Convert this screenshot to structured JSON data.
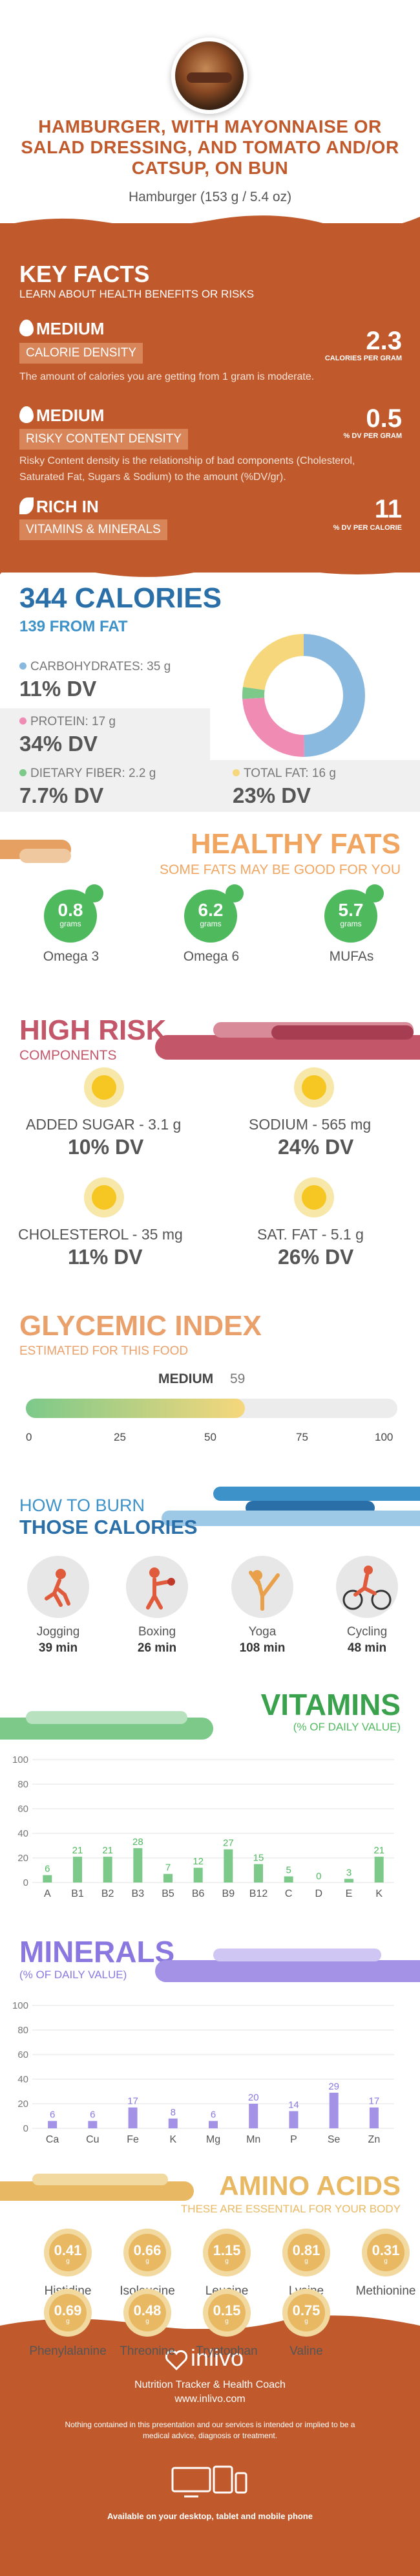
{
  "header": {
    "title": "HAMBURGER, WITH MAYONNAISE OR SALAD DRESSING, AND TOMATO AND/OR CATSUP, ON BUN",
    "subtitle": "Hamburger (153 g / 5.4 oz)"
  },
  "key_facts": {
    "title": "KEY FACTS",
    "subtitle": "LEARN ABOUT HEALTH BENEFITS OR RISKS",
    "calorie": {
      "level": "MEDIUM",
      "label": "CALORIE DENSITY",
      "value": "2.3",
      "unit": "CALORIES PER GRAM",
      "desc": "The amount of calories you are getting from 1 gram is moderate."
    },
    "risky": {
      "level": "MEDIUM",
      "label": "RISKY CONTENT DENSITY",
      "value": "0.5",
      "unit": "% DV PER GRAM",
      "desc": "Risky Content density is the relationship of bad components (Cholesterol, Saturated Fat, Sugars & Sodium) to the amount (%DV/gr)."
    },
    "rich": {
      "level": "RICH  IN",
      "label": "VITAMINS & MINERALS",
      "value": "11",
      "unit": "% DV PER CALORIE"
    }
  },
  "calories": {
    "title": "344 CALORIES",
    "from_fat": "139 FROM FAT",
    "carbs": {
      "label": "CARBOHYDRATES: 35 g",
      "dv": "11% DV",
      "color": "#8ab9df"
    },
    "protein": {
      "label": "PROTEIN: 17 g",
      "dv": "34% DV",
      "color": "#f08bb4"
    },
    "fiber": {
      "label": "DIETARY FIBER: 2.2 g",
      "dv": "7.7% DV",
      "color": "#7cc98a"
    },
    "fat": {
      "label": "TOTAL FAT: 16 g",
      "dv": "23% DV",
      "color": "#f6d77c"
    },
    "donut": [
      {
        "name": "carbs",
        "value": 35,
        "color": "#8ab9df"
      },
      {
        "name": "protein",
        "value": 17,
        "color": "#f08bb4"
      },
      {
        "name": "fiber",
        "value": 2.2,
        "color": "#7cc98a"
      },
      {
        "name": "fat",
        "value": 16,
        "color": "#f6d77c"
      }
    ]
  },
  "healthy_fats": {
    "title": "HEALTHY FATS",
    "subtitle": "SOME FATS MAY BE GOOD FOR YOU",
    "unit": "grams",
    "items": [
      {
        "value": "0.8",
        "label": "Omega 3"
      },
      {
        "value": "6.2",
        "label": "Omega 6"
      },
      {
        "value": "5.7",
        "label": "MUFAs"
      }
    ]
  },
  "high_risk": {
    "title": "HIGH RISK",
    "subtitle": "COMPONENTS",
    "items": [
      {
        "label": "ADDED SUGAR - 3.1 g",
        "dv": "10% DV"
      },
      {
        "label": "SODIUM - 565 mg",
        "dv": "24% DV"
      },
      {
        "label": "CHOLESTEROL - 35 mg",
        "dv": "11% DV"
      },
      {
        "label": "SAT. FAT - 5.1 g",
        "dv": "26% DV"
      }
    ]
  },
  "glycemic": {
    "title": "GLYCEMIC INDEX",
    "subtitle": "ESTIMATED FOR THIS FOOD",
    "level": "MEDIUM",
    "value": 59,
    "ticks": [
      "0",
      "25",
      "50",
      "75",
      "100"
    ]
  },
  "burn": {
    "title1": "HOW TO BURN",
    "title2": "THOSE CALORIES",
    "items": [
      {
        "name": "Jogging",
        "min": "39 min",
        "icon": "jogging-icon"
      },
      {
        "name": "Boxing",
        "min": "26 min",
        "icon": "boxing-icon"
      },
      {
        "name": "Yoga",
        "min": "108 min",
        "icon": "yoga-icon"
      },
      {
        "name": "Cycling",
        "min": "48 min",
        "icon": "cycling-icon"
      }
    ]
  },
  "chart_data": [
    {
      "type": "bar",
      "title": "VITAMINS",
      "subtitle": "(% OF DAILY VALUE)",
      "categories": [
        "A",
        "B1",
        "B2",
        "B3",
        "B5",
        "B6",
        "B9",
        "B12",
        "C",
        "D",
        "E",
        "K"
      ],
      "values": [
        6,
        21,
        21,
        28,
        7,
        12,
        27,
        15,
        5,
        0,
        3,
        21
      ],
      "ylim": [
        0,
        100
      ],
      "yticks": [
        "0",
        "20",
        "40",
        "60",
        "80",
        "100"
      ],
      "color": "#7cc98a",
      "label_color": "#4fb95e"
    },
    {
      "type": "bar",
      "title": "MINERALS",
      "subtitle": "(% OF DAILY VALUE)",
      "categories": [
        "Ca",
        "Cu",
        "Fe",
        "K",
        "Mg",
        "Mn",
        "P",
        "Se",
        "Zn"
      ],
      "values": [
        6,
        6,
        17,
        8,
        6,
        20,
        14,
        29,
        17
      ],
      "ylim": [
        0,
        100
      ],
      "yticks": [
        "0",
        "20",
        "40",
        "60",
        "80",
        "100"
      ],
      "color": "#a392e6",
      "label_color": "#8a78e0"
    }
  ],
  "amino": {
    "title": "AMINO ACIDS",
    "subtitle": "THESE ARE ESSENTIAL FOR YOUR BODY",
    "unit": "g",
    "items": [
      {
        "value": "0.41",
        "label": "Histidine"
      },
      {
        "value": "0.66",
        "label": "Isoleucine"
      },
      {
        "value": "1.15",
        "label": "Leucine"
      },
      {
        "value": "0.81",
        "label": "Lysine"
      },
      {
        "value": "0.31",
        "label": "Methionine"
      },
      {
        "value": "0.69",
        "label": "Phenylalanine"
      },
      {
        "value": "0.48",
        "label": "Threonine"
      },
      {
        "value": "0.15",
        "label": "Tryptophan"
      },
      {
        "value": "0.75",
        "label": "Valine"
      }
    ]
  },
  "footer": {
    "brand": "inlivo",
    "tagline": "Nutrition Tracker & Health Coach",
    "url": "www.inlivo.com",
    "disclaimer": "Nothing contained in this presentation and our services is intended or implied to be a medical advice, diagnosis or treatment.",
    "devices": "Available on your desktop, tablet and mobile phone"
  }
}
